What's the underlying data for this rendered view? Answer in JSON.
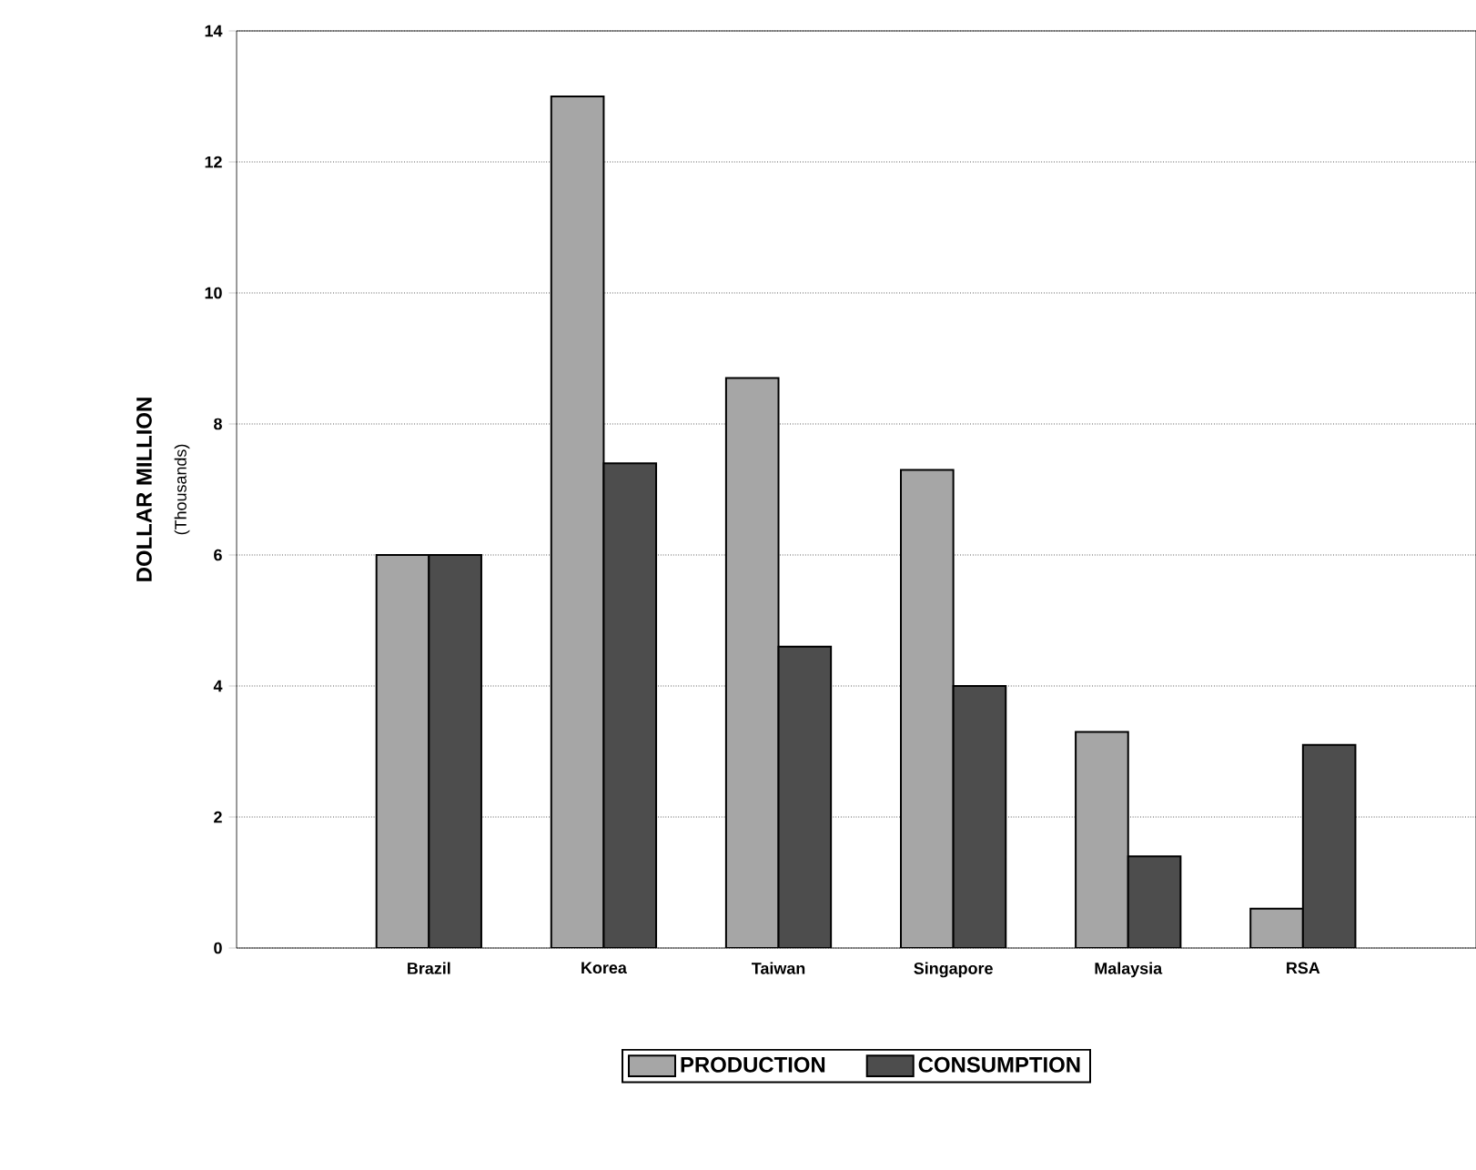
{
  "chart_data": {
    "type": "bar",
    "ylabel": "DOLLAR MILLION",
    "annotations": [
      "(Thousands)"
    ],
    "categories": [
      "Brazil",
      "Korea",
      "Taiwan",
      "Singapore",
      "Malaysia",
      "RSA"
    ],
    "series": [
      {
        "name": "PRODUCTION",
        "color": "#a6a6a6",
        "values": [
          6.0,
          13.0,
          8.7,
          7.3,
          3.3,
          0.6
        ]
      },
      {
        "name": "CONSUMPTION",
        "color": "#4d4d4d",
        "values": [
          6.0,
          7.4,
          4.6,
          4.0,
          1.4,
          3.1
        ]
      }
    ],
    "ylim": [
      0,
      14
    ],
    "yticks": [
      0,
      2,
      4,
      6,
      8,
      10,
      12,
      14
    ],
    "grid": "y",
    "legend": "bottom"
  }
}
